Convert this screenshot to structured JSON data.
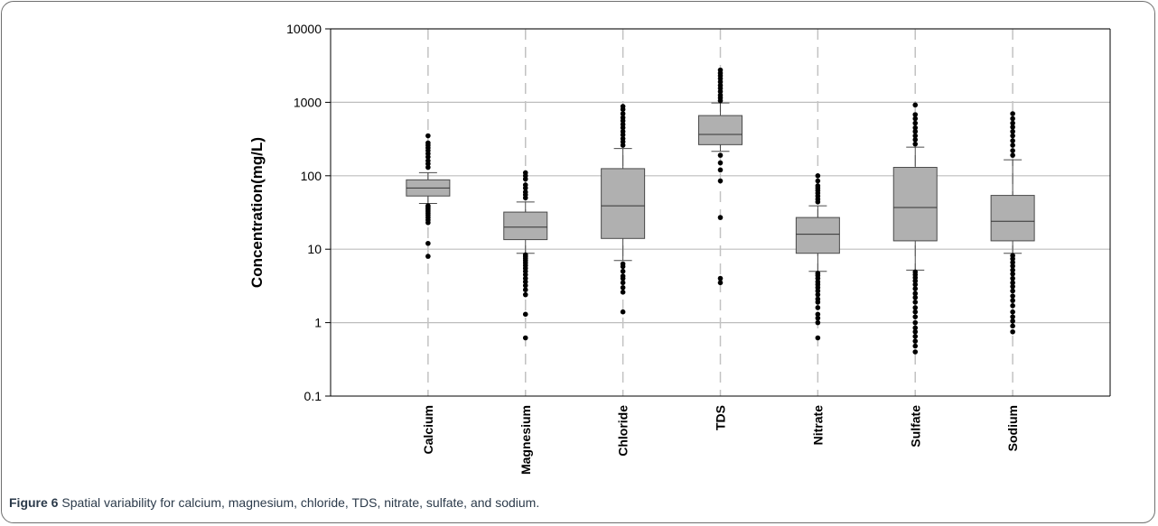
{
  "chart_data": {
    "type": "box",
    "ylabel": "Concentration(mg/L)",
    "yscale": "log",
    "ylim": [
      0.1,
      10000
    ],
    "yticks": [
      0.1,
      1,
      10,
      100,
      1000,
      10000
    ],
    "ytick_labels": [
      "0.1",
      "1",
      "10",
      "100",
      "1000",
      "10000"
    ],
    "grid": true,
    "categories": [
      "Calcium",
      "Magnesium",
      "Chloride",
      "TDS",
      "Nitrate",
      "Sulfate",
      "Sodium"
    ],
    "boxes": [
      {
        "name": "Calcium",
        "whisker_low": 42,
        "q1": 53,
        "median": 68,
        "q3": 88,
        "whisker_high": 110,
        "outliers": [
          8,
          12,
          23,
          25,
          27,
          29,
          31,
          33,
          35,
          37,
          39,
          130,
          145,
          160,
          180,
          200,
          220,
          240,
          260,
          280,
          350
        ]
      },
      {
        "name": "Magnesium",
        "whisker_low": 8.8,
        "q1": 13.5,
        "median": 20,
        "q3": 32,
        "whisker_high": 44,
        "outliers": [
          0.62,
          1.3,
          2.4,
          2.8,
          3.2,
          3.6,
          4.0,
          4.5,
          5.0,
          5.5,
          6.0,
          6.5,
          7.0,
          7.5,
          8.0,
          8.4,
          50,
          55,
          60,
          68,
          75,
          90,
          100,
          110
        ]
      },
      {
        "name": "Chloride",
        "whisker_low": 7,
        "q1": 14,
        "median": 39,
        "q3": 125,
        "whisker_high": 235,
        "outliers": [
          1.4,
          2.6,
          3.0,
          3.5,
          4.0,
          4.3,
          5.0,
          5.8,
          6.3,
          260,
          290,
          320,
          360,
          400,
          450,
          500,
          560,
          620,
          700,
          800,
          880
        ]
      },
      {
        "name": "TDS",
        "whisker_low": 215,
        "q1": 265,
        "median": 365,
        "q3": 660,
        "whisker_high": 980,
        "outliers": [
          3.5,
          4.0,
          27,
          85,
          120,
          150,
          190,
          1050,
          1150,
          1250,
          1400,
          1550,
          1700,
          1900,
          2100,
          2300,
          2500,
          2750
        ]
      },
      {
        "name": "Nitrate",
        "whisker_low": 5,
        "q1": 8.8,
        "median": 16,
        "q3": 27,
        "whisker_high": 39,
        "outliers": [
          0.62,
          1.0,
          1.15,
          1.3,
          1.6,
          1.9,
          2.1,
          2.4,
          2.7,
          3.0,
          3.3,
          3.6,
          4.0,
          4.4,
          4.7,
          44,
          48,
          53,
          58,
          63,
          68,
          73,
          85,
          100
        ]
      },
      {
        "name": "Sulfate",
        "whisker_low": 5.2,
        "q1": 13,
        "median": 37,
        "q3": 130,
        "whisker_high": 245,
        "outliers": [
          0.4,
          0.48,
          0.56,
          0.65,
          0.75,
          0.85,
          1.0,
          1.2,
          1.4,
          1.6,
          1.9,
          2.2,
          2.5,
          2.9,
          3.3,
          3.7,
          4.1,
          4.5,
          4.9,
          270,
          310,
          350,
          400,
          450,
          520,
          600,
          680,
          920
        ]
      },
      {
        "name": "Sodium",
        "whisker_low": 8.8,
        "q1": 13,
        "median": 24,
        "q3": 54,
        "whisker_high": 165,
        "outliers": [
          0.75,
          0.9,
          1.05,
          1.2,
          1.4,
          1.7,
          2.0,
          2.3,
          2.7,
          3.1,
          3.5,
          4.0,
          4.6,
          5.2,
          5.9,
          6.6,
          7.4,
          8.2,
          190,
          220,
          260,
          300,
          350,
          400,
          460,
          520,
          600,
          700
        ]
      }
    ]
  },
  "caption": {
    "label": "Figure 6",
    "text": " Spatial variability for calcium, magnesium, chloride, TDS, nitrate, sulfate, and sodium."
  },
  "colors": {
    "box_fill": "#b0b0b0",
    "box_stroke": "#4a4a4a",
    "grid": "#bdbdbd",
    "dash": "#c2c2c2",
    "outlier": "#000000",
    "caption": "#2b3a4a"
  }
}
